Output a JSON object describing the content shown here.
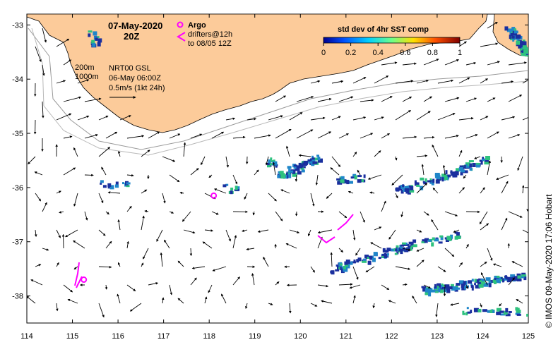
{
  "map": {
    "date_title": "07-May-2020",
    "time_title": "20Z",
    "argo_label": "Argo",
    "drifters_label": "drifters@12h",
    "drifters_sub": "to 08/05 12Z",
    "isobath_200": "200m",
    "isobath_1000": "1000m",
    "product_line1": "NRT00 GSL",
    "product_line2": "06-May 06:00Z",
    "vector_scale": "0.5m/s (1kt 24h)",
    "credit": "© IMOS 09-May-2020 17:06 Hobart",
    "colorbar": {
      "title": "std dev of 4hr SST comp",
      "ticks": [
        "0",
        "0.2",
        "0.4",
        "0.6",
        "0.8",
        "1"
      ]
    },
    "lat_ticks": [
      "-33",
      "-34",
      "-35",
      "-36",
      "-37",
      "-38"
    ],
    "lon_ticks": [
      "114",
      "115",
      "116",
      "117",
      "118",
      "119",
      "120",
      "121",
      "122",
      "123",
      "124",
      "125"
    ],
    "colors": {
      "land": "#fccb9a",
      "argo": "#ff00ff",
      "cell_low": "#1a2f9e",
      "cell_mid": "#1f86c9",
      "cell_high": "#2ec27e"
    },
    "argo_floats": [
      {
        "lon": 115.25,
        "lat": -37.7
      },
      {
        "lon": 118.1,
        "lat": -36.15
      }
    ]
  }
}
